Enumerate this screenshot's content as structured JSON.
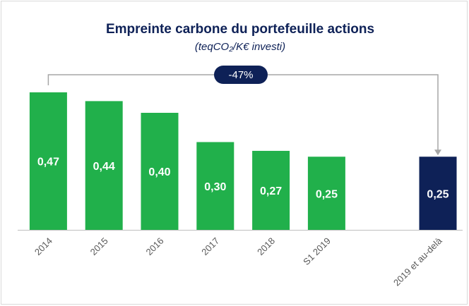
{
  "chart_data": {
    "type": "bar",
    "title": "Empreinte carbone du portefeuille actions",
    "subtitle": "(teqCO₂/K€ investi)",
    "categories": [
      "2014",
      "2015",
      "2016",
      "2017",
      "2018",
      "S1 2019",
      null,
      "2019 et au-delà"
    ],
    "values": [
      0.47,
      0.44,
      0.4,
      0.3,
      0.27,
      0.25,
      null,
      0.25
    ],
    "value_labels": [
      "0,47",
      "0,44",
      "0,40",
      "0,30",
      "0,27",
      "0,25",
      null,
      "0,25"
    ],
    "colors": [
      "#21b04b",
      "#21b04b",
      "#21b04b",
      "#21b04b",
      "#21b04b",
      "#21b04b",
      null,
      "#0e2157"
    ],
    "ylim": [
      0,
      0.5
    ],
    "annotation": "-47%"
  }
}
